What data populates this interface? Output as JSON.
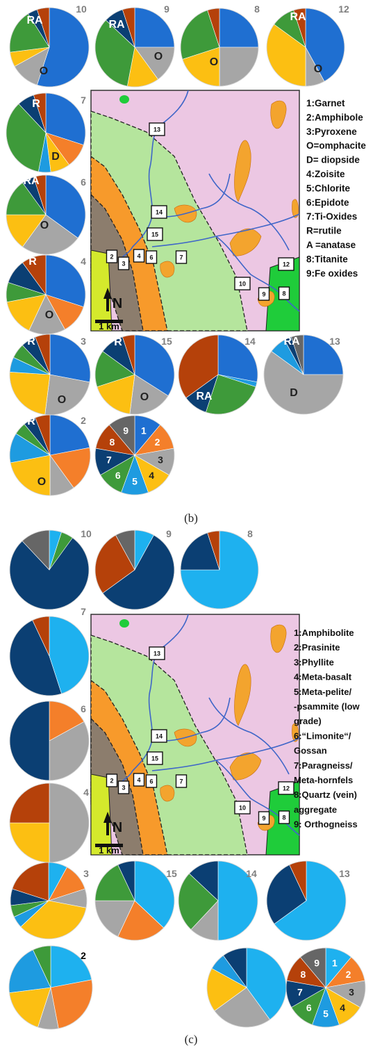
{
  "colors": {
    "c1": "#1f6fd1",
    "c2": "#f47f2a",
    "c3": "#a6a6a6",
    "c4": "#fcbf12",
    "c5": "#1e9be0",
    "c6": "#3e9a3a",
    "c7": "#0b3f73",
    "c8": "#b5410a",
    "c9": "#666666",
    "c1b": "#1eb1ef",
    "map_pink": "#ecc7e3",
    "map_lightgreen": "#b5e59d",
    "map_orange": "#f79a2b",
    "map_darkorange": "#f3a42e",
    "map_brown": "#8c7d6d",
    "map_yellow": "#d4e92c",
    "map_green": "#1fcc3a",
    "river": "#3f66c8"
  },
  "captions": {
    "b": "(b)",
    "c": "(c)"
  },
  "legend_b": [
    "1:Garnet",
    "2:Amphibole",
    "3:Pyroxene",
    "O=omphacite",
    "D= diopside",
    "4:Zoisite",
    "5:Chlorite",
    "6:Epidote",
    "7:Ti-Oxides",
    "R=rutile",
    "A =anatase",
    "8:Titanite",
    "9:Fe oxides"
  ],
  "legend_c": [
    "1:Amphibolite",
    "2:Prasinite",
    "3:Phyllite",
    "4:Meta-basalt",
    "5:Meta-pelite/",
    "-psammite (low",
    "grade)",
    "6:“Limonite“/",
    "Gossan",
    "7:Paragneiss/",
    "Meta-hornfels",
    "8:Quartz (vein)",
    "aggregate",
    "9: Orthogneiss"
  ],
  "map_labels": [
    "13",
    "14",
    "15",
    "2",
    "3",
    "4",
    "6",
    "7",
    "12",
    "10",
    "9",
    "8"
  ],
  "scale_label": "1 km",
  "north_label": "N",
  "chart_data": [
    {
      "type": "pie",
      "panel": "b",
      "categories": [
        "1",
        "2",
        "3",
        "4",
        "5",
        "6",
        "7",
        "8",
        "9"
      ],
      "charts": [
        {
          "id": "10",
          "values": [
            55,
            0,
            12,
            6,
            0,
            18,
            4,
            5,
            0
          ],
          "labels": [
            {
              "text": "RA"
            },
            {
              "text": "O"
            }
          ]
        },
        {
          "id": "9",
          "values": [
            25,
            0,
            15,
            13,
            0,
            34,
            8,
            5,
            0
          ],
          "labels": [
            {
              "text": "RA"
            },
            {
              "text": "O"
            }
          ]
        },
        {
          "id": "8",
          "values": [
            25,
            0,
            25,
            20,
            0,
            25,
            0,
            5,
            0
          ],
          "labels": [
            {
              "text": "O"
            }
          ]
        },
        {
          "id": "12",
          "values": [
            42,
            0,
            8,
            35,
            0,
            10,
            0,
            5,
            0
          ],
          "labels": [
            {
              "text": "RA"
            },
            {
              "text": "O"
            }
          ]
        },
        {
          "id": "7",
          "values": [
            30,
            10,
            0,
            8,
            5,
            35,
            7,
            5,
            0
          ],
          "labels": [
            {
              "text": "R"
            },
            {
              "text": "D"
            }
          ]
        },
        {
          "id": "6",
          "values": [
            35,
            0,
            25,
            15,
            0,
            15,
            5,
            5,
            0
          ],
          "labels": [
            {
              "text": "RA"
            },
            {
              "text": "O"
            }
          ]
        },
        {
          "id": "4",
          "values": [
            30,
            12,
            15,
            15,
            0,
            8,
            10,
            10,
            0
          ],
          "labels": [
            {
              "text": "R"
            },
            {
              "text": "O"
            }
          ]
        },
        {
          "id": "3",
          "values": [
            28,
            0,
            24,
            24,
            6,
            6,
            6,
            6,
            0
          ],
          "labels": [
            {
              "text": "R"
            },
            {
              "text": "O"
            }
          ]
        },
        {
          "id": "15",
          "values": [
            34,
            0,
            18,
            18,
            0,
            15,
            10,
            5,
            0
          ],
          "labels": [
            {
              "text": "R"
            },
            {
              "text": "O"
            }
          ]
        },
        {
          "id": "14",
          "values": [
            28,
            0,
            0,
            0,
            2,
            25,
            10,
            35,
            0
          ],
          "labels": [
            {
              "text": "RA"
            }
          ]
        },
        {
          "id": "13",
          "values": [
            25,
            0,
            60,
            0,
            7,
            0,
            3,
            0,
            5
          ],
          "labels": [
            {
              "text": "RA"
            },
            {
              "text": "D"
            }
          ]
        },
        {
          "id": "2",
          "values": [
            22,
            18,
            10,
            22,
            12,
            5,
            5,
            6,
            0
          ],
          "labels": [
            {
              "text": "R"
            },
            {
              "text": "O"
            }
          ]
        }
      ],
      "legend_pie": {
        "values": [
          1,
          1,
          1,
          1,
          1,
          1,
          1,
          1,
          1
        ],
        "labels": [
          "1",
          "2",
          "3",
          "4",
          "5",
          "6",
          "7",
          "8",
          "9"
        ]
      }
    },
    {
      "type": "pie",
      "panel": "c",
      "categories": [
        "1",
        "2",
        "3",
        "4",
        "5",
        "6",
        "7",
        "8",
        "9"
      ],
      "charts": [
        {
          "id": "10",
          "values": [
            5,
            0,
            0,
            0,
            0,
            5,
            78,
            0,
            12
          ]
        },
        {
          "id": "9",
          "values": [
            8,
            0,
            0,
            0,
            0,
            0,
            57,
            27,
            8
          ]
        },
        {
          "id": "8",
          "values": [
            75,
            0,
            0,
            0,
            0,
            0,
            20,
            5,
            0
          ]
        },
        {
          "id": "7",
          "values": [
            45,
            0,
            0,
            0,
            0,
            0,
            48,
            7,
            0
          ]
        },
        {
          "id": "6",
          "values": [
            0,
            17,
            33,
            0,
            0,
            0,
            50,
            0,
            0
          ]
        },
        {
          "id": "4",
          "values": [
            0,
            0,
            50,
            25,
            0,
            0,
            0,
            25,
            0
          ]
        },
        {
          "id": "3",
          "values": [
            8,
            12,
            8,
            35,
            5,
            5,
            7,
            20,
            0
          ]
        },
        {
          "id": "15",
          "values": [
            37,
            20,
            18,
            0,
            0,
            18,
            7,
            0,
            0
          ]
        },
        {
          "id": "14",
          "values": [
            50,
            0,
            12,
            0,
            0,
            25,
            13,
            0,
            0
          ]
        },
        {
          "id": "13",
          "values": [
            65,
            0,
            0,
            0,
            0,
            0,
            28,
            7,
            0
          ]
        },
        {
          "id": "2",
          "values": [
            22,
            25,
            8,
            18,
            20,
            7,
            0,
            0,
            0
          ]
        },
        {
          "id": "",
          "values": [
            40,
            0,
            25,
            18,
            7,
            0,
            10,
            0,
            0
          ]
        }
      ],
      "legend_pie": {
        "values": [
          1,
          1,
          1,
          1,
          1,
          1,
          1,
          1,
          1
        ],
        "labels": [
          "1",
          "2",
          "3",
          "4",
          "5",
          "6",
          "7",
          "8",
          "9"
        ]
      }
    }
  ]
}
